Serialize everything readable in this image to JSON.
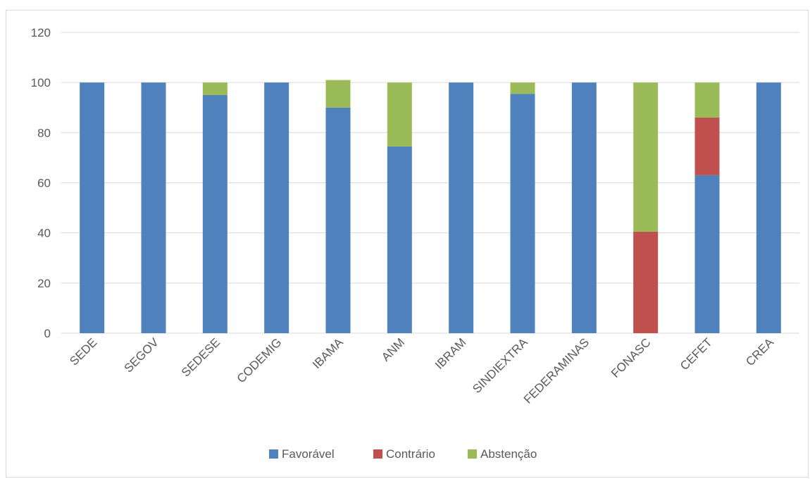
{
  "chart_data": {
    "type": "bar",
    "stacked": true,
    "categories": [
      "SEDE",
      "SEGOV",
      "SEDESE",
      "CODEMIG",
      "IBAMA",
      "ANM",
      "IBRAM",
      "SINDIEXTRA",
      "FEDERAMINAS",
      "FONASC",
      "CEFET",
      "CREA"
    ],
    "series": [
      {
        "name": "Favorável",
        "color": "#4f81bd",
        "values": [
          100,
          100,
          95,
          100,
          90,
          74.5,
          100,
          95.5,
          100,
          0,
          63,
          100
        ]
      },
      {
        "name": "Contrário",
        "color": "#c0504d",
        "values": [
          0,
          0,
          0,
          0,
          0,
          0,
          0,
          0,
          0,
          40.5,
          23,
          0
        ]
      },
      {
        "name": "Abstenção",
        "color": "#9bbb59",
        "values": [
          0,
          0,
          5,
          0,
          11,
          25.5,
          0,
          4.5,
          0,
          59.5,
          14,
          0
        ]
      }
    ],
    "ylim": [
      0,
      120
    ],
    "yticks": [
      0,
      20,
      40,
      60,
      80,
      100,
      120
    ],
    "grid": true,
    "legend": "bottom",
    "title": "",
    "xlabel": "",
    "ylabel": ""
  }
}
